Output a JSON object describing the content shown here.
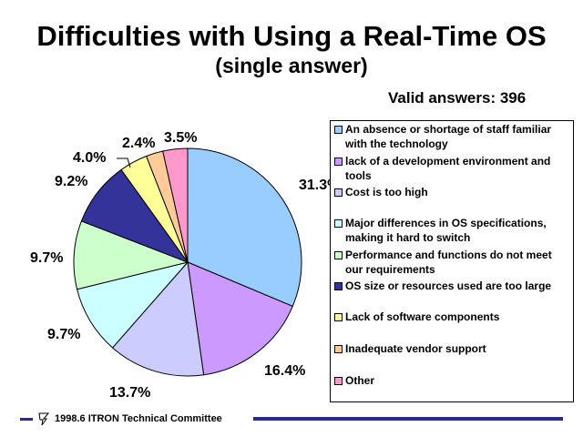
{
  "header": {
    "title": "Difficulties with Using a Real-Time OS",
    "subtitle": "(single answer)",
    "valid_answers": "Valid answers: 396"
  },
  "chart_data": {
    "type": "pie",
    "title": "Difficulties with Using a Real-Time OS",
    "subtitle": "(single answer)",
    "legend_position": "right",
    "slices": [
      {
        "label": "An absence or shortage of staff familiar with the technology",
        "value": 31.3,
        "value_label": "31.3%",
        "color": "#99ccff"
      },
      {
        "label": "lack of a development environment and tools",
        "value": 16.4,
        "value_label": "16.4%",
        "color": "#cc99ff"
      },
      {
        "label": "Cost is too high",
        "value": 13.7,
        "value_label": "13.7%",
        "color": "#ccccff"
      },
      {
        "label": "Major differences in OS specifications, making it hard to switch",
        "value": 9.7,
        "value_label": "9.7%",
        "color": "#ccffff"
      },
      {
        "label": "Performance and functions do not meet our requirements",
        "value": 9.7,
        "value_label": "9.7%",
        "color": "#ccffcc"
      },
      {
        "label": "OS size or resources used are too large",
        "value": 9.2,
        "value_label": "9.2%",
        "color": "#333399"
      },
      {
        "label": "Lack of software components",
        "value": 4.0,
        "value_label": "4.0%",
        "color": "#ffff99"
      },
      {
        "label": "Inadequate vendor support",
        "value": 2.4,
        "value_label": "2.4%",
        "color": "#ffcc99"
      },
      {
        "label": "Other",
        "value": 3.5,
        "value_label": "3.5%",
        "color": "#ff99cc"
      }
    ]
  },
  "footer": {
    "text": "1998.6  ITRON Technical Committee",
    "logo_icon": "itron-logo-icon"
  }
}
